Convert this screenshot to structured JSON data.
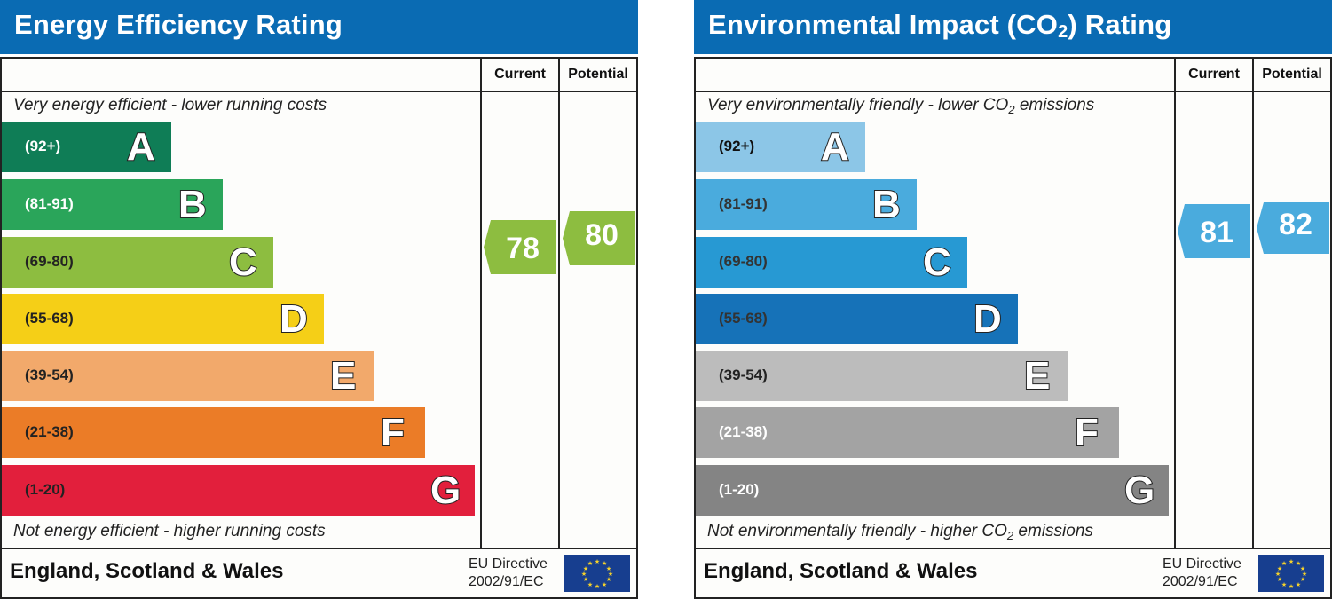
{
  "chart_data": [
    {
      "type": "bar",
      "title": "Energy Efficiency Rating",
      "orientation": "horizontal",
      "categories": [
        "A",
        "B",
        "C",
        "D",
        "E",
        "F",
        "G"
      ],
      "ranges": [
        "(92+)",
        "(81-91)",
        "(69-80)",
        "(55-68)",
        "(39-54)",
        "(21-38)",
        "(1-20)"
      ],
      "colors": [
        "#0f7d56",
        "#2aa55a",
        "#8dbd40",
        "#f5cf17",
        "#f2a96b",
        "#eb7c27",
        "#e21f3c"
      ],
      "columns": [
        "Current",
        "Potential"
      ],
      "current": 78,
      "potential": 80,
      "top_caption": "Very energy efficient - lower running costs",
      "bottom_caption": "Not energy efficient - higher running costs"
    },
    {
      "type": "bar",
      "title": "Environmental Impact (CO2) Rating",
      "orientation": "horizontal",
      "categories": [
        "A",
        "B",
        "C",
        "D",
        "E",
        "F",
        "G"
      ],
      "ranges": [
        "(92+)",
        "(81-91)",
        "(69-80)",
        "(55-68)",
        "(39-54)",
        "(21-38)",
        "(1-20)"
      ],
      "colors": [
        "#8cc6e7",
        "#4aabdd",
        "#2799d3",
        "#1672b8",
        "#bcbcbc",
        "#a3a3a3",
        "#848484"
      ],
      "columns": [
        "Current",
        "Potential"
      ],
      "current": 81,
      "potential": 82,
      "top_caption": "Very environmentally friendly - lower CO2 emissions",
      "bottom_caption": "Not environmentally friendly - higher CO2 emissions"
    }
  ],
  "energy": {
    "title": "Energy Efficiency Rating",
    "col_current": "Current",
    "col_potential": "Potential",
    "top_caption": "Very energy efficient - lower running costs",
    "bottom_caption": "Not energy efficient - higher running costs",
    "bars": [
      {
        "range": "(92+)",
        "letter": "A",
        "color": "#0f7d56",
        "text_color": "#ffffff"
      },
      {
        "range": "(81-91)",
        "letter": "B",
        "color": "#2aa55a",
        "text_color": "#ffffff"
      },
      {
        "range": "(69-80)",
        "letter": "C",
        "color": "#8dbd40",
        "text_color": "#222222"
      },
      {
        "range": "(55-68)",
        "letter": "D",
        "color": "#f5cf17",
        "text_color": "#222222"
      },
      {
        "range": "(39-54)",
        "letter": "E",
        "color": "#f2a96b",
        "text_color": "#222222"
      },
      {
        "range": "(21-38)",
        "letter": "F",
        "color": "#eb7c27",
        "text_color": "#222222"
      },
      {
        "range": "(1-20)",
        "letter": "G",
        "color": "#e21f3c",
        "text_color": "#222222"
      }
    ],
    "current": "78",
    "potential": "80",
    "arrow_color": "#8dbd40",
    "footer": "England, Scotland & Wales",
    "eu_line1": "EU Directive",
    "eu_line2": "2002/91/EC"
  },
  "environment": {
    "title_pre": "Environmental Impact (CO",
    "title_sub": "2",
    "title_post": ") Rating",
    "col_current": "Current",
    "col_potential": "Potential",
    "top_caption_pre": "Very environmentally friendly - lower CO",
    "top_caption_sub": "2",
    "top_caption_post": " emissions",
    "bottom_caption_pre": "Not environmentally friendly - higher CO",
    "bottom_caption_sub": "2",
    "bottom_caption_post": " emissions",
    "bars": [
      {
        "range": "(92+)",
        "letter": "A",
        "color": "#8cc6e7",
        "text_color": "#111111"
      },
      {
        "range": "(81-91)",
        "letter": "B",
        "color": "#4aabdd",
        "text_color": "#333333"
      },
      {
        "range": "(69-80)",
        "letter": "C",
        "color": "#2799d3",
        "text_color": "#333333"
      },
      {
        "range": "(55-68)",
        "letter": "D",
        "color": "#1672b8",
        "text_color": "#333333"
      },
      {
        "range": "(39-54)",
        "letter": "E",
        "color": "#bcbcbc",
        "text_color": "#222222"
      },
      {
        "range": "(21-38)",
        "letter": "F",
        "color": "#a3a3a3",
        "text_color": "#ffffff"
      },
      {
        "range": "(1-20)",
        "letter": "G",
        "color": "#848484",
        "text_color": "#ffffff"
      }
    ],
    "current": "81",
    "potential": "82",
    "arrow_color": "#4aabdd",
    "footer": "England, Scotland & Wales",
    "eu_line1": "EU Directive",
    "eu_line2": "2002/91/EC"
  }
}
